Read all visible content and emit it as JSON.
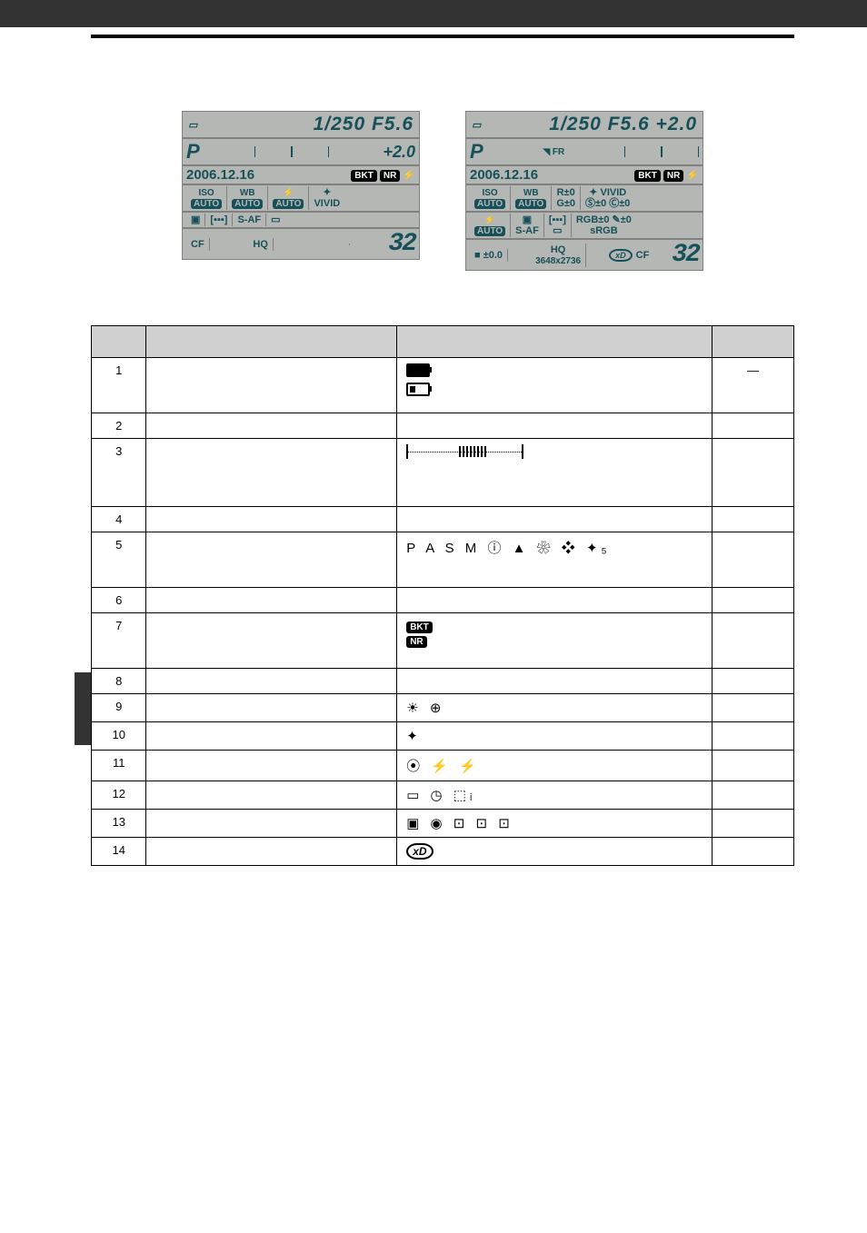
{
  "panel_normal": {
    "top_line": "1/250 F5.6",
    "exp_comp": "+2.0",
    "mode_letter": "P",
    "date": "2006.12.16",
    "r1c1_lbl": "ISO",
    "r1c1_val": "AUTO",
    "r1c2_lbl": "WB",
    "r1c2_val": "AUTO",
    "r1c3_lbl": "⚡",
    "r1c3_val": "AUTO",
    "r1c4_val": "VIVID",
    "r2c3": "S-AF",
    "r3c1": "CF",
    "r3c2": "HQ",
    "count": "32"
  },
  "panel_detail": {
    "top_line": "1/250 F5.6 +2.0",
    "mode_letter": "P",
    "date": "2006.12.16",
    "r1c1_lbl": "ISO",
    "r1c1_val": "AUTO",
    "r1c2_lbl": "WB",
    "r1c2_val": "AUTO",
    "r1c3_a": "R±0",
    "r1c3_b": "G±0",
    "r1c4_a": "VIVID",
    "r1c4_b": "Ⓢ±0 Ⓒ±0",
    "r2c1_val": "AUTO",
    "r2c2": "S-AF",
    "r2c4a": "RGB±0",
    "r2c4b": "✎±0",
    "r2c4c": "sRGB",
    "r3c1": "■ ±0.0",
    "r3c2a": "HQ",
    "r3c2b": "3648x2736",
    "r3cf": "CF",
    "count": "32"
  },
  "table": {
    "rows": [
      {
        "no": "1",
        "indication": "battery-icons",
        "page": "—"
      },
      {
        "no": "2",
        "page": ""
      },
      {
        "no": "3",
        "indication": "meter-icon",
        "page": ""
      },
      {
        "no": "4",
        "page": ""
      },
      {
        "no": "5",
        "indication": "P A S M ⓘ ▲ ❀ ❖ ✦₅",
        "page": ""
      },
      {
        "no": "6",
        "page": ""
      },
      {
        "no": "7",
        "indication": "bkt-nr",
        "page": ""
      },
      {
        "no": "8",
        "page": ""
      },
      {
        "no": "9",
        "indication": "☀ ⊕",
        "page": ""
      },
      {
        "no": "10",
        "indication": "✦",
        "page": ""
      },
      {
        "no": "11",
        "indication": "⦿ ⚡ ⚡",
        "page": ""
      },
      {
        "no": "12",
        "indication": "▭ ◷ ⬚ᵢ",
        "page": ""
      },
      {
        "no": "13",
        "indication": "▣ ◉ ⊡ ⊡  ⊡",
        "page": ""
      },
      {
        "no": "14",
        "indication": "xd-chip",
        "page": ""
      }
    ]
  }
}
